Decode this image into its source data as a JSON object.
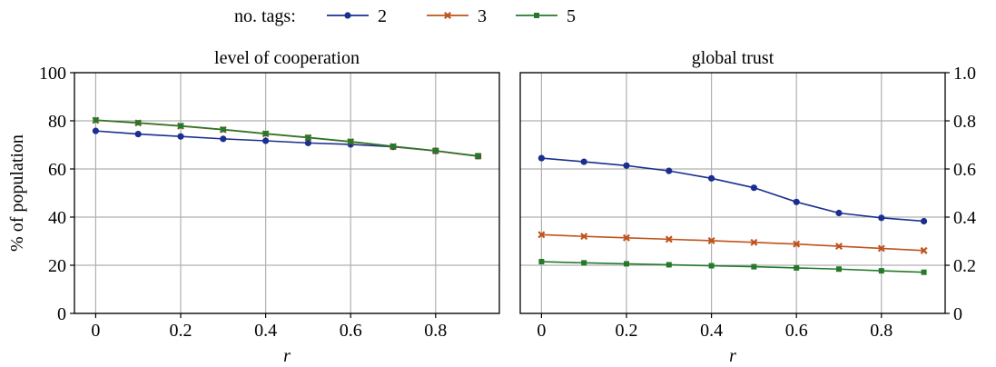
{
  "legend": {
    "title": "no. tags:",
    "entries": [
      {
        "label": "2",
        "color": "#1a2f8f",
        "marker": "circle"
      },
      {
        "label": "3",
        "color": "#c0521b",
        "marker": "x"
      },
      {
        "label": "5",
        "color": "#237a2b",
        "marker": "square"
      }
    ]
  },
  "chart_data": [
    {
      "type": "line",
      "title": "level of cooperation",
      "xlabel": "r",
      "ylabel": "% of population",
      "xlim": [
        -0.05,
        0.95
      ],
      "ylim": [
        0,
        100
      ],
      "xticks": [
        0,
        0.2,
        0.4,
        0.6,
        0.8
      ],
      "xtick_labels": [
        "0",
        "0.2",
        "0.4",
        "0.6",
        "0.8"
      ],
      "yticks": [
        0,
        20,
        40,
        60,
        80,
        100
      ],
      "ytick_labels": [
        "0",
        "20",
        "40",
        "60",
        "80",
        "100"
      ],
      "yaxis_side": "left",
      "grid": true,
      "x": [
        0,
        0.1,
        0.2,
        0.3,
        0.4,
        0.5,
        0.6,
        0.7,
        0.8,
        0.9
      ],
      "series": [
        {
          "name": "2",
          "color": "#1a2f8f",
          "marker": "circle",
          "values": [
            75.8,
            74.5,
            73.5,
            72.5,
            71.7,
            70.8,
            70.2,
            69.2,
            67.5,
            65.3
          ]
        },
        {
          "name": "3",
          "color": "#c0521b",
          "marker": "x",
          "values": [
            80.2,
            79.1,
            77.8,
            76.3,
            74.6,
            73.0,
            71.3,
            69.3,
            67.5,
            65.3
          ]
        },
        {
          "name": "5",
          "color": "#237a2b",
          "marker": "square",
          "values": [
            80.3,
            79.2,
            77.9,
            76.4,
            74.7,
            73.1,
            71.4,
            69.4,
            67.6,
            65.4
          ]
        }
      ]
    },
    {
      "type": "line",
      "title": "global trust",
      "xlabel": "r",
      "ylabel": "",
      "xlim": [
        -0.05,
        0.95
      ],
      "ylim": [
        0,
        1.0
      ],
      "xticks": [
        0,
        0.2,
        0.4,
        0.6,
        0.8
      ],
      "xtick_labels": [
        "0",
        "0.2",
        "0.4",
        "0.6",
        "0.8"
      ],
      "yticks": [
        0,
        0.2,
        0.4,
        0.6,
        0.8,
        1.0
      ],
      "ytick_labels": [
        "0",
        "0.2",
        "0.4",
        "0.6",
        "0.8",
        "1.0"
      ],
      "yaxis_side": "right",
      "grid": true,
      "x": [
        0,
        0.1,
        0.2,
        0.3,
        0.4,
        0.5,
        0.6,
        0.7,
        0.8,
        0.9
      ],
      "series": [
        {
          "name": "2",
          "color": "#1a2f8f",
          "marker": "circle",
          "values": [
            0.645,
            0.63,
            0.614,
            0.592,
            0.561,
            0.522,
            0.463,
            0.417,
            0.397,
            0.383
          ]
        },
        {
          "name": "3",
          "color": "#c0521b",
          "marker": "x",
          "values": [
            0.327,
            0.32,
            0.314,
            0.308,
            0.302,
            0.295,
            0.288,
            0.279,
            0.27,
            0.261
          ]
        },
        {
          "name": "5",
          "color": "#237a2b",
          "marker": "square",
          "values": [
            0.215,
            0.21,
            0.206,
            0.202,
            0.198,
            0.194,
            0.189,
            0.184,
            0.177,
            0.171
          ]
        }
      ]
    }
  ]
}
